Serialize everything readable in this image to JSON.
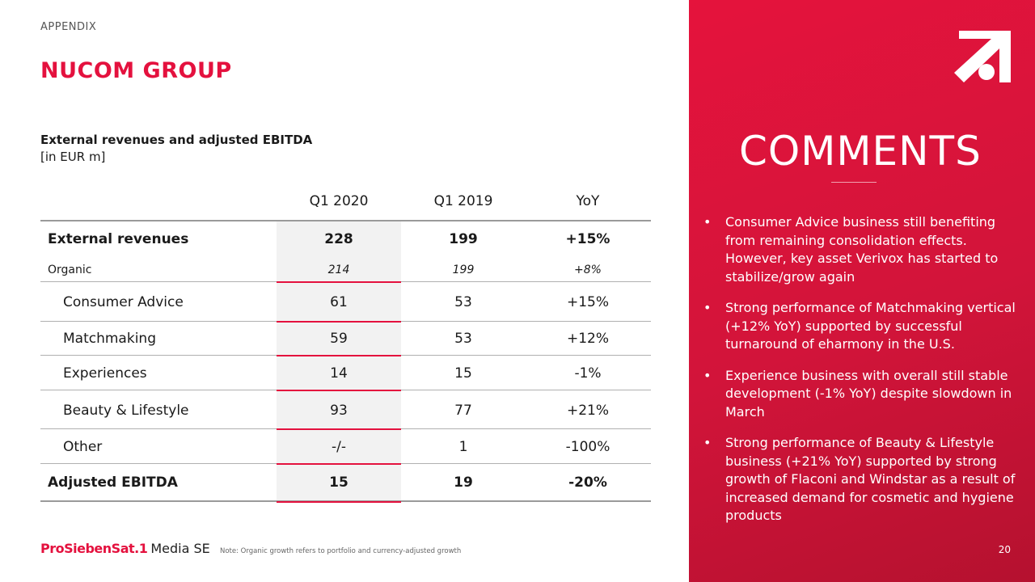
{
  "header": {
    "appendix": "APPENDIX",
    "title": "NUCOM GROUP"
  },
  "subtitle": {
    "line1": "External revenues and adjusted EBITDA",
    "line2": "[in EUR m]"
  },
  "table": {
    "columns": [
      "Q1 2020",
      "Q1 2019",
      "YoY"
    ],
    "rows": [
      {
        "label": "External revenues",
        "values": [
          "228",
          "199",
          "+15%"
        ]
      },
      {
        "label": "Organic",
        "values": [
          "214",
          "199",
          "+8%"
        ]
      },
      {
        "label": "Consumer Advice",
        "values": [
          "61",
          "53",
          "+15%"
        ]
      },
      {
        "label": "Matchmaking",
        "values": [
          "59",
          "53",
          "+12%"
        ]
      },
      {
        "label": "Experiences",
        "values": [
          "14",
          "15",
          "-1%"
        ]
      },
      {
        "label": "Beauty & Lifestyle",
        "values": [
          "93",
          "77",
          "+21%"
        ]
      },
      {
        "label": "Other",
        "values": [
          "-/-",
          "1",
          "-100%"
        ]
      },
      {
        "label": "Adjusted EBITDA",
        "values": [
          "15",
          "19",
          "-20%"
        ]
      }
    ]
  },
  "comments": {
    "title": "COMMENTS",
    "bullet_char": "•",
    "bullets": [
      "Consumer Advice business still benefiting from remaining consolidation effects. However, key asset Verivox has started to stabilize/grow again",
      "Strong performance of Matchmaking vertical (+12% YoY) supported by successful turnaround of eharmony in the U.S.",
      "Experience business with overall still stable development (-1% YoY) despite slowdown in March",
      "Strong performance of Beauty & Lifestyle business (+21% YoY) supported by strong growth of Flaconi and Windstar as a result of increased demand for cosmetic and hygiene products"
    ]
  },
  "footer": {
    "brand_red": "ProSiebenSat.1",
    "brand_dark": "Media SE",
    "note": "Note: Organic growth refers to portfolio and currency-adjusted growth",
    "page_number": "20"
  },
  "colors": {
    "accent": "#e4113e",
    "panel": "#d2143a"
  },
  "icons": {
    "logo": "prosiebensat1-logo-icon"
  }
}
